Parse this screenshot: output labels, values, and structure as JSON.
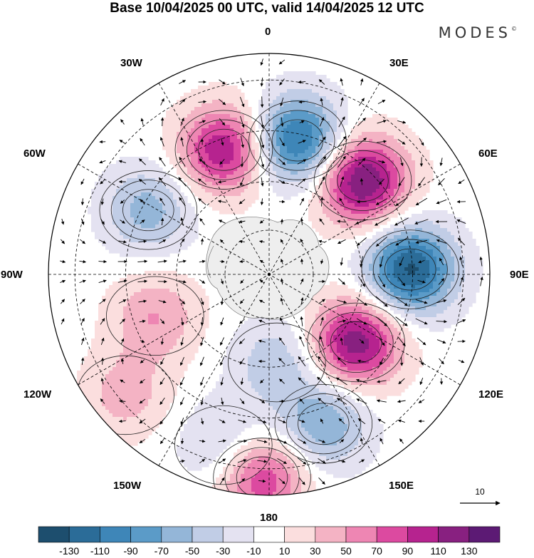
{
  "title": "Base 10/04/2025 00 UTC, valid 14/04/2025 12 UTC",
  "brand": "MODES",
  "brand_mark": "©",
  "longitude_labels": {
    "lon_0": "0",
    "lon_30e": "30E",
    "lon_60e": "60E",
    "lon_90e": "90E",
    "lon_120e": "120E",
    "lon_150e": "150E",
    "lon_180": "180",
    "lon_150w": "150W",
    "lon_120w": "120W",
    "lon_90w": "90W",
    "lon_60w": "60W",
    "lon_30w": "30W"
  },
  "reference_vector": {
    "value": "10"
  },
  "colorbar": {
    "tick_labels": [
      "-130",
      "-110",
      "-90",
      "-70",
      "-50",
      "-30",
      "-10",
      "10",
      "30",
      "50",
      "70",
      "90",
      "110",
      "130"
    ],
    "colors": [
      "#1d4e6e",
      "#2b6c98",
      "#3e86b8",
      "#5b9bc8",
      "#94b6d8",
      "#c1cde6",
      "#e4e2f1",
      "#ffffff",
      "#fbdede",
      "#f4b3c4",
      "#ee86b3",
      "#dc4aa0",
      "#b6238f",
      "#882080",
      "#5c1a74"
    ]
  },
  "map": {
    "projection": "south polar stereographic",
    "background": "#ffffff",
    "land_color": "#eeeeee",
    "anomaly_centers": [
      {
        "lon": 12,
        "colat": 0.62,
        "value": -120
      },
      {
        "lon": 45,
        "colat": 0.6,
        "value": 135
      },
      {
        "lon": 88,
        "colat": 0.64,
        "value": -135
      },
      {
        "lon": 128,
        "colat": 0.5,
        "value": 125
      },
      {
        "lon": 160,
        "colat": 0.72,
        "value": -70
      },
      {
        "lon": 182,
        "colat": 0.92,
        "value": 90
      },
      {
        "lon": -20,
        "colat": 0.6,
        "value": 110
      },
      {
        "lon": -62,
        "colat": 0.62,
        "value": -60
      },
      {
        "lon": -110,
        "colat": 0.55,
        "value": 50
      },
      {
        "lon": -130,
        "colat": 0.85,
        "value": 40
      },
      {
        "lon": -165,
        "colat": 0.8,
        "value": -40
      },
      {
        "lon": 175,
        "colat": 0.4,
        "value": -45
      }
    ]
  }
}
